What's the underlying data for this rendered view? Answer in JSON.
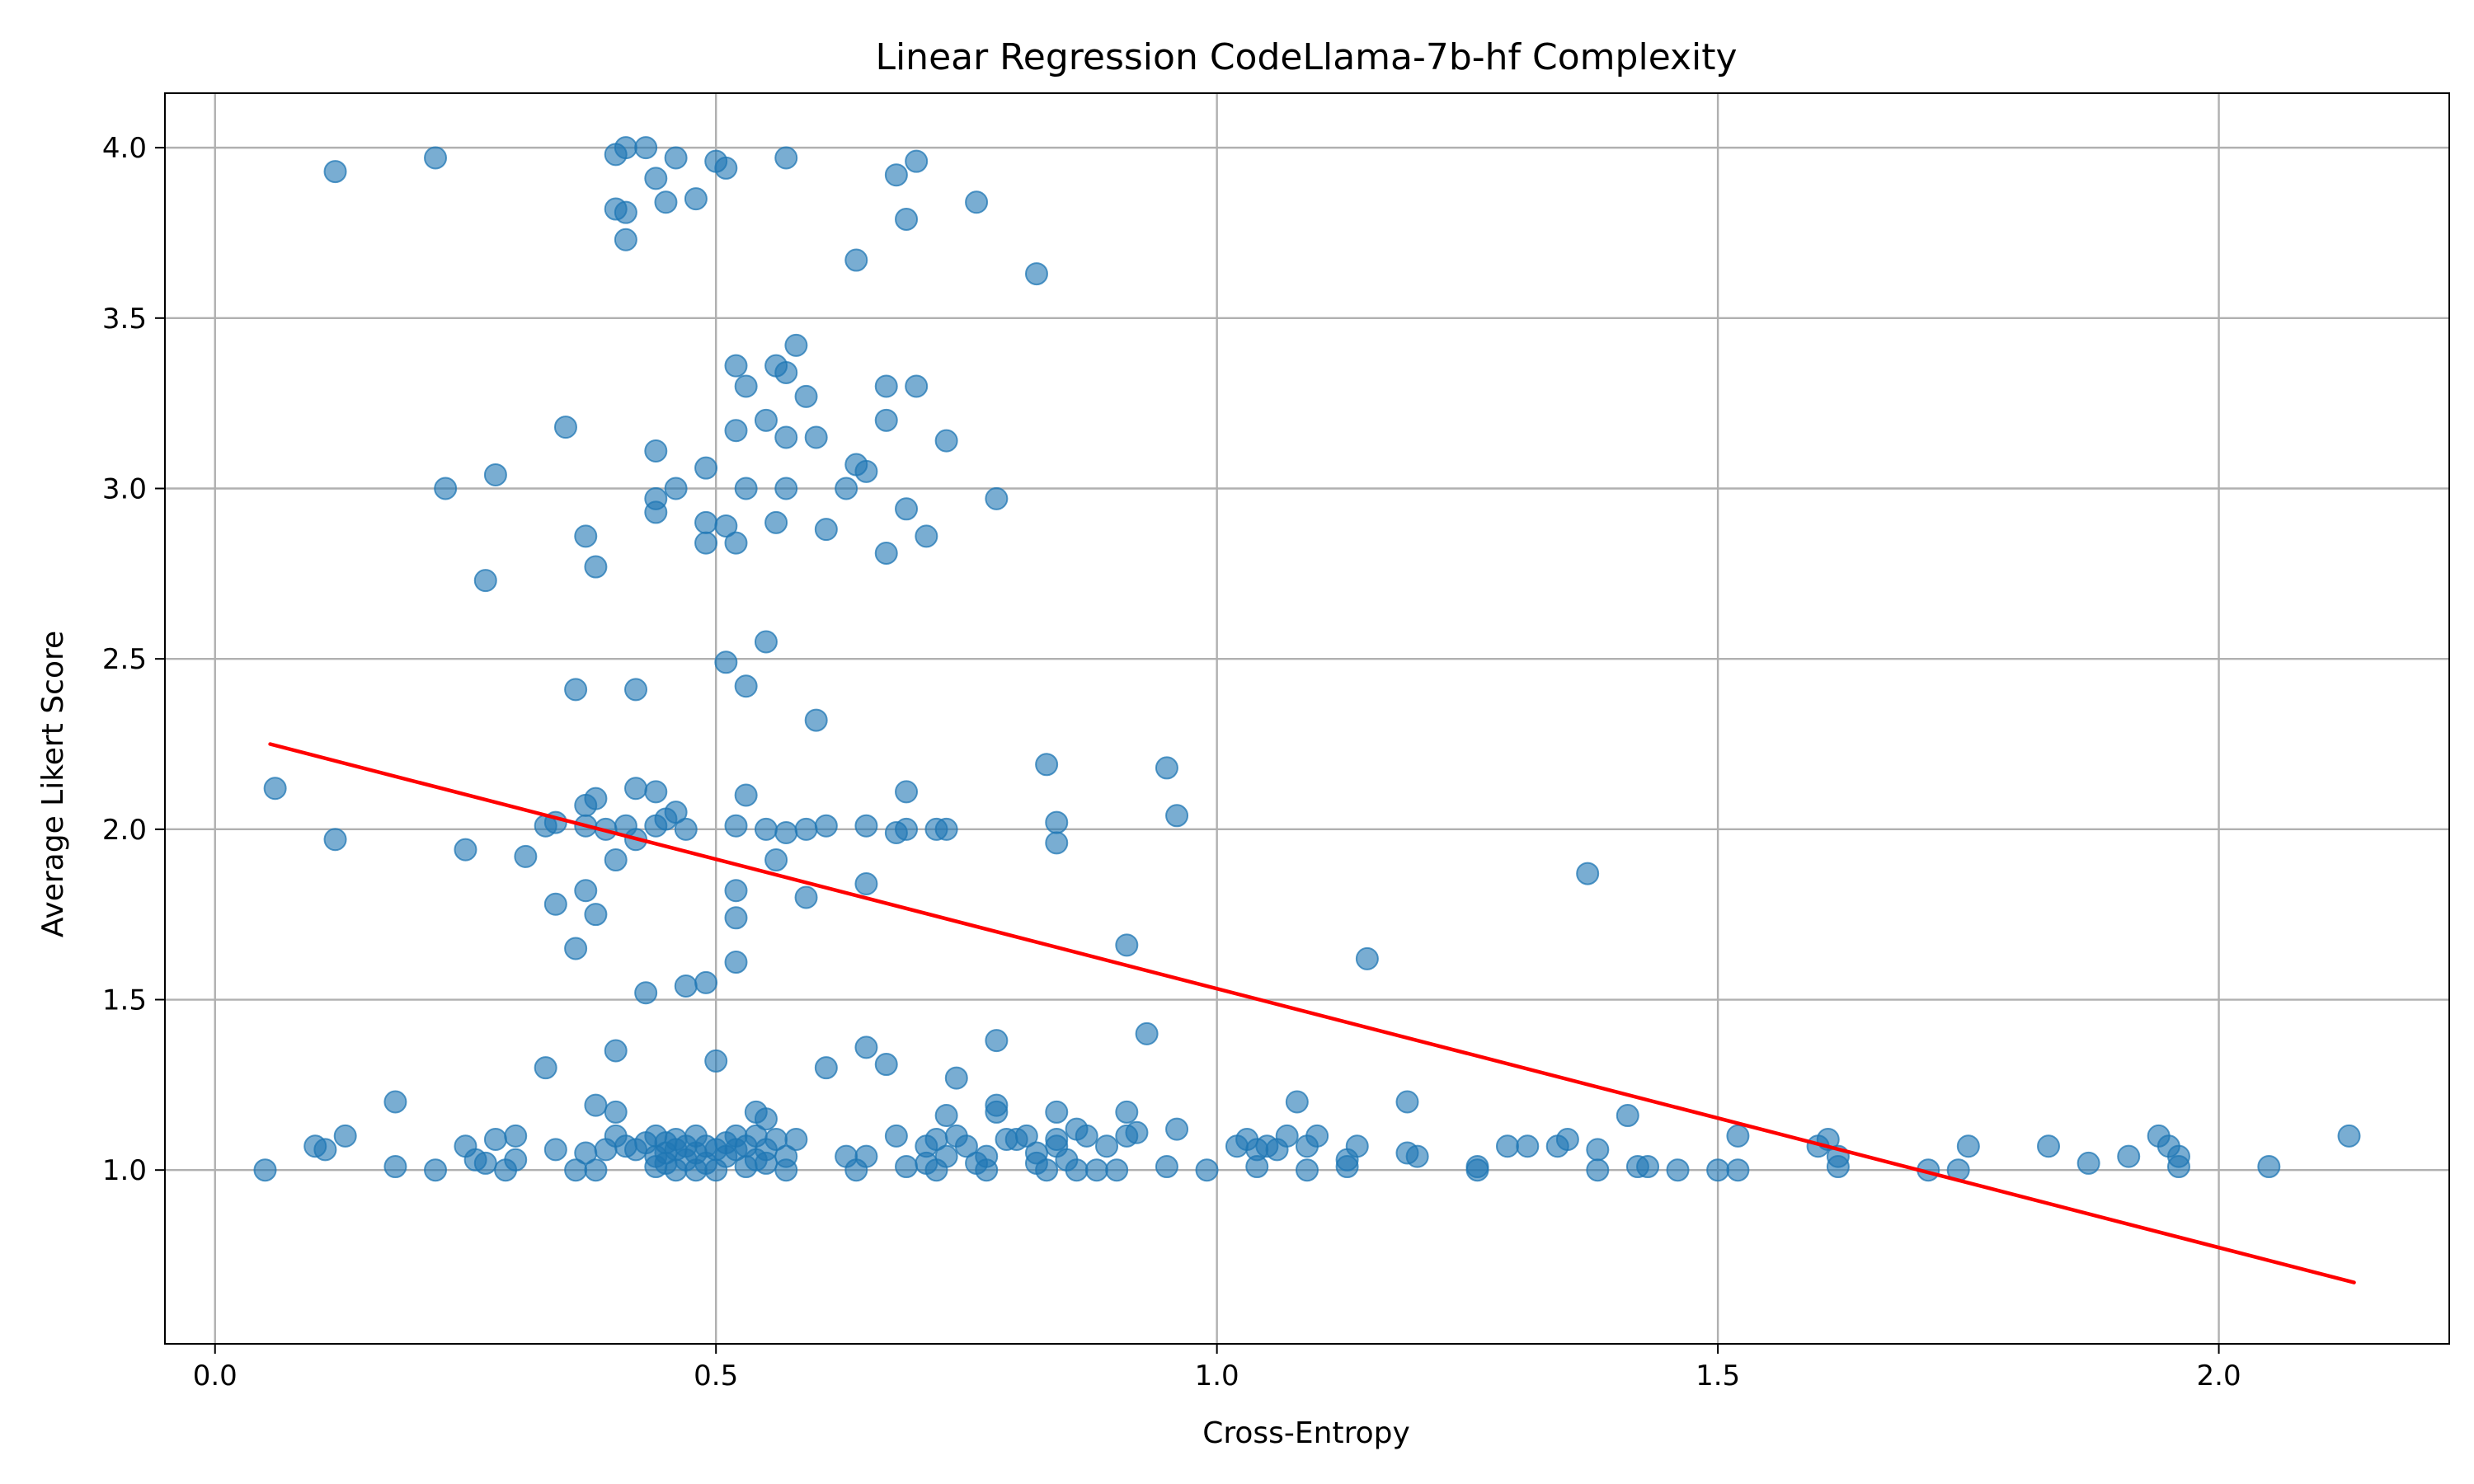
{
  "chart_data": {
    "type": "scatter",
    "title": "Linear Regression CodeLlama-7b-hf Complexity",
    "xlabel": "Cross-Entropy",
    "ylabel": "Average Likert Score",
    "xlim": [
      -0.05,
      2.23
    ],
    "ylim": [
      0.49,
      4.16
    ],
    "x_ticks": [
      0.0,
      0.5,
      1.0,
      1.5,
      2.0
    ],
    "x_tick_labels": [
      "0.0",
      "0.5",
      "1.0",
      "1.5",
      "2.0"
    ],
    "y_ticks": [
      1.0,
      1.5,
      2.0,
      2.5,
      3.0,
      3.5,
      4.0
    ],
    "y_tick_labels": [
      "1.0",
      "1.5",
      "2.0",
      "2.5",
      "3.0",
      "3.5",
      "4.0"
    ],
    "grid": true,
    "colors": {
      "points": "#1f77b4",
      "regression": "#ff0000",
      "grid": "#b0b0b0"
    },
    "regression_line": {
      "x": [
        0.055,
        2.135
      ],
      "y": [
        2.25,
        0.67
      ]
    },
    "points": [
      [
        0.12,
        3.93
      ],
      [
        0.22,
        3.97
      ],
      [
        0.4,
        3.98
      ],
      [
        0.41,
        4.0
      ],
      [
        0.43,
        4.0
      ],
      [
        0.46,
        3.97
      ],
      [
        0.5,
        3.96
      ],
      [
        0.51,
        3.94
      ],
      [
        0.57,
        3.97
      ],
      [
        0.68,
        3.92
      ],
      [
        0.7,
        3.96
      ],
      [
        0.4,
        3.82
      ],
      [
        0.41,
        3.81
      ],
      [
        0.44,
        3.91
      ],
      [
        0.45,
        3.84
      ],
      [
        0.48,
        3.85
      ],
      [
        0.69,
        3.79
      ],
      [
        0.76,
        3.84
      ],
      [
        0.41,
        3.73
      ],
      [
        0.64,
        3.67
      ],
      [
        0.82,
        3.63
      ],
      [
        0.58,
        3.42
      ],
      [
        0.52,
        3.36
      ],
      [
        0.56,
        3.36
      ],
      [
        0.57,
        3.34
      ],
      [
        0.53,
        3.3
      ],
      [
        0.59,
        3.27
      ],
      [
        0.67,
        3.3
      ],
      [
        0.7,
        3.3
      ],
      [
        0.35,
        3.18
      ],
      [
        0.52,
        3.17
      ],
      [
        0.55,
        3.2
      ],
      [
        0.57,
        3.15
      ],
      [
        0.6,
        3.15
      ],
      [
        0.67,
        3.2
      ],
      [
        0.73,
        3.14
      ],
      [
        0.44,
        3.11
      ],
      [
        0.23,
        3.0
      ],
      [
        0.28,
        3.04
      ],
      [
        0.44,
        2.97
      ],
      [
        0.46,
        3.0
      ],
      [
        0.49,
        3.06
      ],
      [
        0.53,
        3.0
      ],
      [
        0.57,
        3.0
      ],
      [
        0.63,
        3.0
      ],
      [
        0.64,
        3.07
      ],
      [
        0.65,
        3.05
      ],
      [
        0.69,
        2.94
      ],
      [
        0.78,
        2.97
      ],
      [
        0.27,
        2.73
      ],
      [
        0.37,
        2.86
      ],
      [
        0.38,
        2.77
      ],
      [
        0.44,
        2.93
      ],
      [
        0.49,
        2.84
      ],
      [
        0.49,
        2.9
      ],
      [
        0.51,
        2.89
      ],
      [
        0.52,
        2.84
      ],
      [
        0.56,
        2.9
      ],
      [
        0.61,
        2.88
      ],
      [
        0.67,
        2.81
      ],
      [
        0.71,
        2.86
      ],
      [
        0.55,
        2.55
      ],
      [
        0.51,
        2.49
      ],
      [
        0.36,
        2.41
      ],
      [
        0.42,
        2.41
      ],
      [
        0.53,
        2.42
      ],
      [
        0.6,
        2.32
      ],
      [
        0.06,
        2.12
      ],
      [
        0.12,
        1.97
      ],
      [
        0.25,
        1.94
      ],
      [
        0.31,
        1.92
      ],
      [
        0.33,
        2.01
      ],
      [
        0.34,
        2.02
      ],
      [
        0.37,
        2.07
      ],
      [
        0.37,
        2.01
      ],
      [
        0.38,
        2.09
      ],
      [
        0.39,
        2.0
      ],
      [
        0.4,
        1.91
      ],
      [
        0.41,
        2.01
      ],
      [
        0.42,
        1.97
      ],
      [
        0.42,
        2.12
      ],
      [
        0.44,
        2.11
      ],
      [
        0.44,
        2.01
      ],
      [
        0.45,
        2.03
      ],
      [
        0.46,
        2.05
      ],
      [
        0.47,
        2.0
      ],
      [
        0.52,
        2.01
      ],
      [
        0.53,
        2.1
      ],
      [
        0.55,
        2.0
      ],
      [
        0.56,
        1.91
      ],
      [
        0.57,
        1.99
      ],
      [
        0.59,
        2.0
      ],
      [
        0.61,
        2.01
      ],
      [
        0.65,
        2.01
      ],
      [
        0.68,
        1.99
      ],
      [
        0.69,
        2.11
      ],
      [
        0.69,
        2.0
      ],
      [
        0.72,
        2.0
      ],
      [
        0.73,
        2.0
      ],
      [
        0.83,
        2.19
      ],
      [
        0.84,
        1.96
      ],
      [
        0.84,
        2.02
      ],
      [
        0.95,
        2.18
      ],
      [
        0.96,
        2.04
      ],
      [
        0.34,
        1.78
      ],
      [
        0.36,
        1.65
      ],
      [
        0.37,
        1.82
      ],
      [
        0.38,
        1.75
      ],
      [
        0.43,
        1.52
      ],
      [
        0.47,
        1.54
      ],
      [
        0.49,
        1.55
      ],
      [
        0.52,
        1.74
      ],
      [
        0.52,
        1.82
      ],
      [
        0.52,
        1.61
      ],
      [
        0.59,
        1.8
      ],
      [
        0.65,
        1.84
      ],
      [
        0.91,
        1.66
      ],
      [
        1.15,
        1.62
      ],
      [
        1.37,
        1.87
      ],
      [
        0.33,
        1.3
      ],
      [
        0.4,
        1.35
      ],
      [
        0.5,
        1.32
      ],
      [
        0.61,
        1.3
      ],
      [
        0.65,
        1.36
      ],
      [
        0.67,
        1.31
      ],
      [
        0.74,
        1.27
      ],
      [
        0.78,
        1.38
      ],
      [
        0.93,
        1.4
      ],
      [
        0.18,
        1.2
      ],
      [
        0.38,
        1.19
      ],
      [
        0.4,
        1.17
      ],
      [
        0.54,
        1.17
      ],
      [
        0.55,
        1.15
      ],
      [
        0.73,
        1.16
      ],
      [
        0.78,
        1.19
      ],
      [
        0.78,
        1.17
      ],
      [
        0.84,
        1.17
      ],
      [
        0.91,
        1.17
      ],
      [
        1.08,
        1.2
      ],
      [
        1.19,
        1.2
      ],
      [
        1.41,
        1.16
      ],
      [
        0.05,
        1.0
      ],
      [
        0.1,
        1.07
      ],
      [
        0.11,
        1.06
      ],
      [
        0.13,
        1.1
      ],
      [
        0.18,
        1.01
      ],
      [
        0.22,
        1.0
      ],
      [
        0.25,
        1.07
      ],
      [
        0.26,
        1.03
      ],
      [
        0.27,
        1.02
      ],
      [
        0.28,
        1.09
      ],
      [
        0.29,
        1.0
      ],
      [
        0.3,
        1.1
      ],
      [
        0.3,
        1.03
      ],
      [
        0.34,
        1.06
      ],
      [
        0.36,
        1.0
      ],
      [
        0.37,
        1.05
      ],
      [
        0.38,
        1.0
      ],
      [
        0.39,
        1.06
      ],
      [
        0.4,
        1.1
      ],
      [
        0.41,
        1.07
      ],
      [
        0.42,
        1.06
      ],
      [
        0.43,
        1.08
      ],
      [
        0.44,
        1.1
      ],
      [
        0.44,
        1.04
      ],
      [
        0.44,
        1.01
      ],
      [
        0.45,
        1.08
      ],
      [
        0.45,
        1.05
      ],
      [
        0.45,
        1.02
      ],
      [
        0.46,
        1.09
      ],
      [
        0.46,
        1.06
      ],
      [
        0.46,
        1.0
      ],
      [
        0.47,
        1.07
      ],
      [
        0.47,
        1.03
      ],
      [
        0.48,
        1.1
      ],
      [
        0.48,
        1.05
      ],
      [
        0.48,
        1.0
      ],
      [
        0.49,
        1.07
      ],
      [
        0.49,
        1.02
      ],
      [
        0.5,
        1.06
      ],
      [
        0.5,
        1.0
      ],
      [
        0.51,
        1.08
      ],
      [
        0.51,
        1.04
      ],
      [
        0.52,
        1.1
      ],
      [
        0.52,
        1.06
      ],
      [
        0.53,
        1.01
      ],
      [
        0.53,
        1.07
      ],
      [
        0.54,
        1.03
      ],
      [
        0.54,
        1.1
      ],
      [
        0.55,
        1.06
      ],
      [
        0.55,
        1.02
      ],
      [
        0.56,
        1.09
      ],
      [
        0.57,
        1.04
      ],
      [
        0.57,
        1.0
      ],
      [
        0.58,
        1.09
      ],
      [
        0.63,
        1.04
      ],
      [
        0.64,
        1.0
      ],
      [
        0.65,
        1.04
      ],
      [
        0.68,
        1.1
      ],
      [
        0.69,
        1.01
      ],
      [
        0.71,
        1.07
      ],
      [
        0.71,
        1.02
      ],
      [
        0.72,
        1.0
      ],
      [
        0.72,
        1.09
      ],
      [
        0.73,
        1.04
      ],
      [
        0.74,
        1.1
      ],
      [
        0.75,
        1.07
      ],
      [
        0.76,
        1.02
      ],
      [
        0.77,
        1.04
      ],
      [
        0.77,
        1.0
      ],
      [
        0.79,
        1.09
      ],
      [
        0.8,
        1.09
      ],
      [
        0.81,
        1.1
      ],
      [
        0.82,
        1.05
      ],
      [
        0.82,
        1.02
      ],
      [
        0.83,
        1.0
      ],
      [
        0.84,
        1.07
      ],
      [
        0.84,
        1.09
      ],
      [
        0.85,
        1.03
      ],
      [
        0.86,
        1.0
      ],
      [
        0.86,
        1.12
      ],
      [
        0.87,
        1.1
      ],
      [
        0.88,
        1.0
      ],
      [
        0.89,
        1.07
      ],
      [
        0.9,
        1.0
      ],
      [
        0.91,
        1.1
      ],
      [
        0.92,
        1.11
      ],
      [
        0.95,
        1.01
      ],
      [
        0.96,
        1.12
      ],
      [
        0.99,
        1.0
      ],
      [
        1.02,
        1.07
      ],
      [
        1.03,
        1.09
      ],
      [
        1.04,
        1.06
      ],
      [
        1.04,
        1.01
      ],
      [
        1.05,
        1.07
      ],
      [
        1.06,
        1.06
      ],
      [
        1.07,
        1.1
      ],
      [
        1.09,
        1.07
      ],
      [
        1.09,
        1.0
      ],
      [
        1.1,
        1.1
      ],
      [
        1.13,
        1.03
      ],
      [
        1.13,
        1.01
      ],
      [
        1.14,
        1.07
      ],
      [
        1.19,
        1.05
      ],
      [
        1.2,
        1.04
      ],
      [
        1.26,
        1.0
      ],
      [
        1.26,
        1.01
      ],
      [
        1.29,
        1.07
      ],
      [
        1.31,
        1.07
      ],
      [
        1.34,
        1.07
      ],
      [
        1.35,
        1.09
      ],
      [
        1.38,
        1.06
      ],
      [
        1.38,
        1.0
      ],
      [
        1.42,
        1.01
      ],
      [
        1.43,
        1.01
      ],
      [
        1.46,
        1.0
      ],
      [
        1.5,
        1.0
      ],
      [
        1.52,
        1.0
      ],
      [
        1.52,
        1.1
      ],
      [
        1.6,
        1.07
      ],
      [
        1.61,
        1.09
      ],
      [
        1.62,
        1.01
      ],
      [
        1.62,
        1.04
      ],
      [
        1.71,
        1.0
      ],
      [
        1.74,
        1.0
      ],
      [
        1.75,
        1.07
      ],
      [
        1.83,
        1.07
      ],
      [
        1.87,
        1.02
      ],
      [
        1.91,
        1.04
      ],
      [
        1.94,
        1.1
      ],
      [
        1.95,
        1.07
      ],
      [
        1.96,
        1.01
      ],
      [
        1.96,
        1.04
      ],
      [
        2.05,
        1.01
      ],
      [
        2.13,
        1.1
      ]
    ]
  }
}
